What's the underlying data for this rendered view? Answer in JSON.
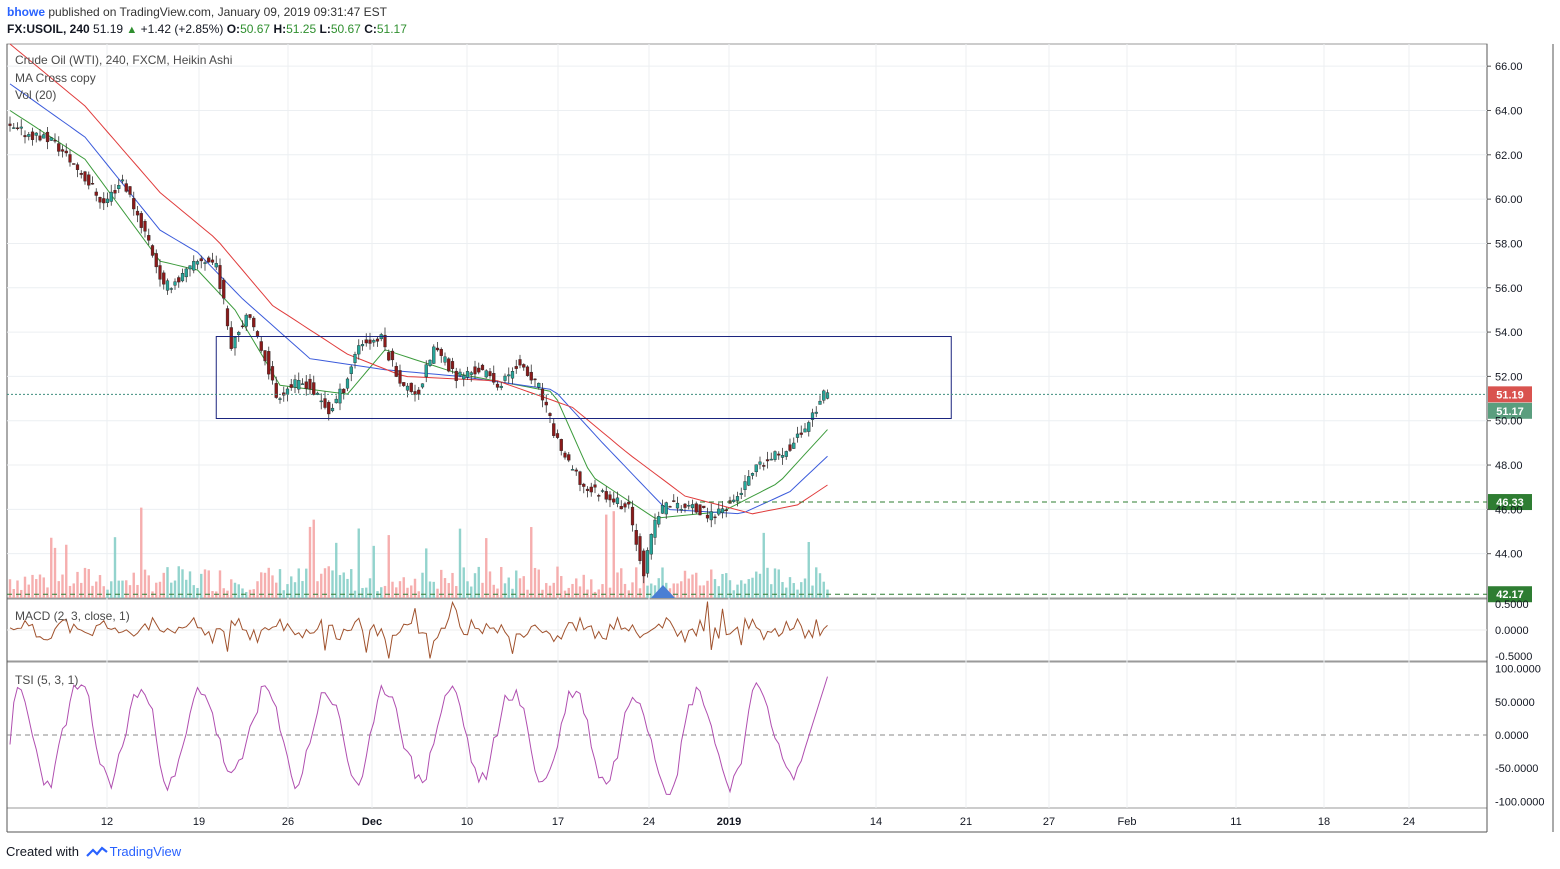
{
  "header": {
    "user": "bhowe",
    "published_text": "published on TradingView.com, January 09, 2019 09:31:47 EST",
    "symbol": "FX:USOIL, 240",
    "last": "51.19",
    "change": "+1.42 (+2.85%)",
    "o_label": "O:",
    "o_value": "50.67",
    "h_label": "H:",
    "h_value": "51.25",
    "l_label": "L:",
    "l_value": "50.67",
    "c_label": "C:",
    "c_value": "51.17"
  },
  "legend": {
    "title": "Crude Oil (WTI), 240, FXCM, Heikin Ashi",
    "ma": "MA Cross copy",
    "vol": "Vol (20)",
    "macd": "MACD (2, 3, close, 1)",
    "tsi": "TSI (5, 3, 1)"
  },
  "footer": {
    "created_with": "Created with",
    "brand": "TradingView"
  },
  "colors": {
    "candle_up": "#26a69a",
    "candle_down": "#8b1a1a",
    "wick": "#333333",
    "ma_fast": "#3c9b3c",
    "ma_mid": "#3b5bdb",
    "ma_slow": "#e03c3c",
    "macd": "#a0522d",
    "tsi": "#b04fb0",
    "box": "#1a237e",
    "vol_up": "#80cbc4",
    "vol_down": "#f4a0a0",
    "level_green": "#2e7d32",
    "price_red": "#d9534f",
    "price_green": "#5a9e7e"
  },
  "chart_data": {
    "type": "candlestick",
    "x_tick_labels": [
      "12",
      "19",
      "26",
      "Dec",
      "10",
      "17",
      "24",
      "2019",
      "14",
      "21",
      "27",
      "Feb",
      "11",
      "18",
      "24"
    ],
    "y_ticks": [
      "66.00",
      "64.00",
      "62.00",
      "60.00",
      "58.00",
      "56.00",
      "54.00",
      "52.00",
      "50.00",
      "48.00",
      "46.00",
      "44.00"
    ],
    "ylim": [
      42.0,
      67.0
    ],
    "price_path": [
      [
        0,
        63.2
      ],
      [
        12,
        62.7
      ],
      [
        20,
        61.2
      ],
      [
        26,
        59.8
      ],
      [
        31,
        60.9
      ],
      [
        38,
        58.1
      ],
      [
        42,
        56.0
      ],
      [
        46,
        56.4
      ],
      [
        52,
        57.3
      ],
      [
        56,
        57.1
      ],
      [
        60,
        53.5
      ],
      [
        64,
        54.8
      ],
      [
        69,
        52.9
      ],
      [
        72,
        51.1
      ],
      [
        76,
        51.6
      ],
      [
        80,
        51.7
      ],
      [
        86,
        50.4
      ],
      [
        90,
        51.5
      ],
      [
        94,
        53.5
      ],
      [
        100,
        53.7
      ],
      [
        106,
        51.5
      ],
      [
        110,
        51.3
      ],
      [
        114,
        53.3
      ],
      [
        120,
        52.0
      ],
      [
        126,
        52.3
      ],
      [
        132,
        51.6
      ],
      [
        136,
        52.6
      ],
      [
        142,
        51.5
      ],
      [
        146,
        49.5
      ],
      [
        150,
        48.0
      ],
      [
        154,
        47.0
      ],
      [
        160,
        46.7
      ],
      [
        166,
        46.0
      ],
      [
        170,
        43.2
      ],
      [
        173,
        45.5
      ],
      [
        176,
        46.3
      ],
      [
        182,
        46.1
      ],
      [
        188,
        45.7
      ],
      [
        194,
        46.4
      ],
      [
        200,
        47.8
      ],
      [
        206,
        48.5
      ],
      [
        210,
        49.0
      ],
      [
        214,
        50.0
      ],
      [
        218,
        51.17
      ]
    ],
    "ma_fast_path": [
      [
        0,
        64.0
      ],
      [
        20,
        61.8
      ],
      [
        40,
        57.2
      ],
      [
        50,
        56.8
      ],
      [
        60,
        55.0
      ],
      [
        72,
        51.6
      ],
      [
        90,
        51.2
      ],
      [
        100,
        53.2
      ],
      [
        120,
        52.1
      ],
      [
        145,
        51.3
      ],
      [
        155,
        47.5
      ],
      [
        172,
        45.6
      ],
      [
        190,
        45.9
      ],
      [
        205,
        47.2
      ],
      [
        218,
        49.6
      ]
    ],
    "ma_mid_path": [
      [
        0,
        65.2
      ],
      [
        20,
        62.8
      ],
      [
        40,
        58.6
      ],
      [
        50,
        57.6
      ],
      [
        62,
        55.5
      ],
      [
        80,
        52.8
      ],
      [
        100,
        52.3
      ],
      [
        120,
        52.0
      ],
      [
        145,
        51.4
      ],
      [
        158,
        49.0
      ],
      [
        175,
        46.0
      ],
      [
        195,
        45.8
      ],
      [
        208,
        46.8
      ],
      [
        218,
        48.4
      ]
    ],
    "ma_slow_path": [
      [
        0,
        67.0
      ],
      [
        20,
        64.2
      ],
      [
        40,
        60.3
      ],
      [
        55,
        58.2
      ],
      [
        70,
        55.2
      ],
      [
        90,
        53.0
      ],
      [
        105,
        52.0
      ],
      [
        130,
        51.8
      ],
      [
        150,
        50.6
      ],
      [
        165,
        48.5
      ],
      [
        180,
        46.6
      ],
      [
        198,
        45.8
      ],
      [
        210,
        46.2
      ],
      [
        218,
        47.1
      ]
    ],
    "horizontal_levels": [
      {
        "label": "51.19",
        "value": 51.19,
        "style": "dotted",
        "color": "price_red"
      },
      {
        "label": "51.17",
        "value": 51.17,
        "style": "tag",
        "color": "price_green"
      },
      {
        "label": "46.33",
        "value": 46.33,
        "style": "dashed",
        "color": "level_green"
      },
      {
        "label": "42.17",
        "value": 42.17,
        "style": "dashed",
        "color": "level_green"
      }
    ],
    "range_box": {
      "x_from": 55,
      "x_to": 251,
      "y_from": 50.1,
      "y_to": 53.8
    },
    "macd": {
      "title": "MACD (2, 3, close, 1)",
      "y_ticks": [
        "0.5000",
        "0.0000",
        "-0.5000"
      ],
      "ylim": [
        -0.6,
        0.6
      ]
    },
    "tsi": {
      "title": "TSI (5, 3, 1)",
      "y_ticks": [
        "100.0000",
        "50.0000",
        "0.0000",
        "-50.0000",
        "-100.0000"
      ],
      "ylim": [
        -110,
        110
      ]
    }
  }
}
